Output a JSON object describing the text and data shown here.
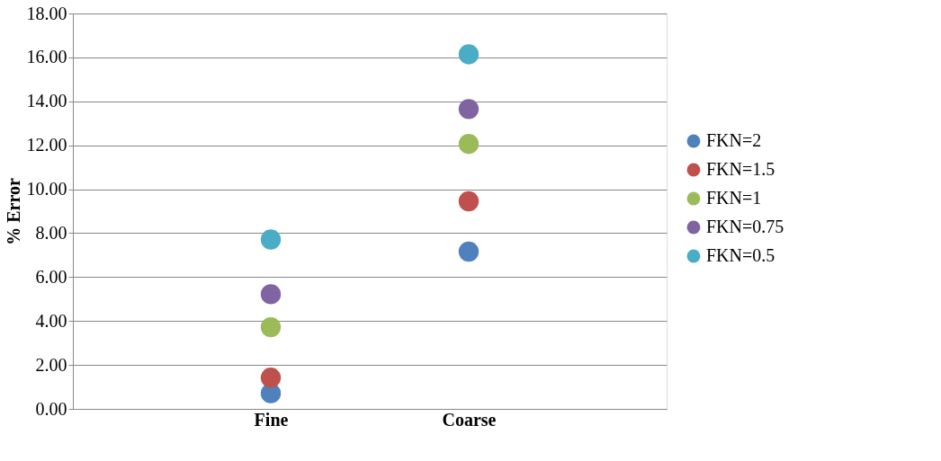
{
  "chart_data": {
    "type": "scatter",
    "ylabel": "% Error",
    "categories": [
      "Fine",
      "Coarse"
    ],
    "series": [
      {
        "name": "FKN=2",
        "color": "#4f81bd",
        "values": [
          0.71,
          7.16
        ]
      },
      {
        "name": "FKN=1.5",
        "color": "#c0504d",
        "values": [
          1.42,
          9.45
        ]
      },
      {
        "name": "FKN=1",
        "color": "#9bbb59",
        "values": [
          3.72,
          12.06
        ]
      },
      {
        "name": "FKN=0.75",
        "color": "#8064a2",
        "values": [
          5.22,
          13.65
        ]
      },
      {
        "name": "FKN=0.5",
        "color": "#4bacc6",
        "values": [
          7.71,
          16.14
        ]
      }
    ],
    "ylim": [
      0,
      18
    ],
    "yticks": [
      {
        "value": 0,
        "label": "0.00"
      },
      {
        "value": 2,
        "label": "2.00"
      },
      {
        "value": 4,
        "label": "4.00"
      },
      {
        "value": 6,
        "label": "6.00"
      },
      {
        "value": 8,
        "label": "8.00"
      },
      {
        "value": 10,
        "label": "10.00"
      },
      {
        "value": 12,
        "label": "12.00"
      },
      {
        "value": 14,
        "label": "14.00"
      },
      {
        "value": 16,
        "label": "16.00"
      },
      {
        "value": 18,
        "label": "18.00"
      }
    ],
    "grid": "y",
    "legend": "right",
    "marker": "circle"
  }
}
